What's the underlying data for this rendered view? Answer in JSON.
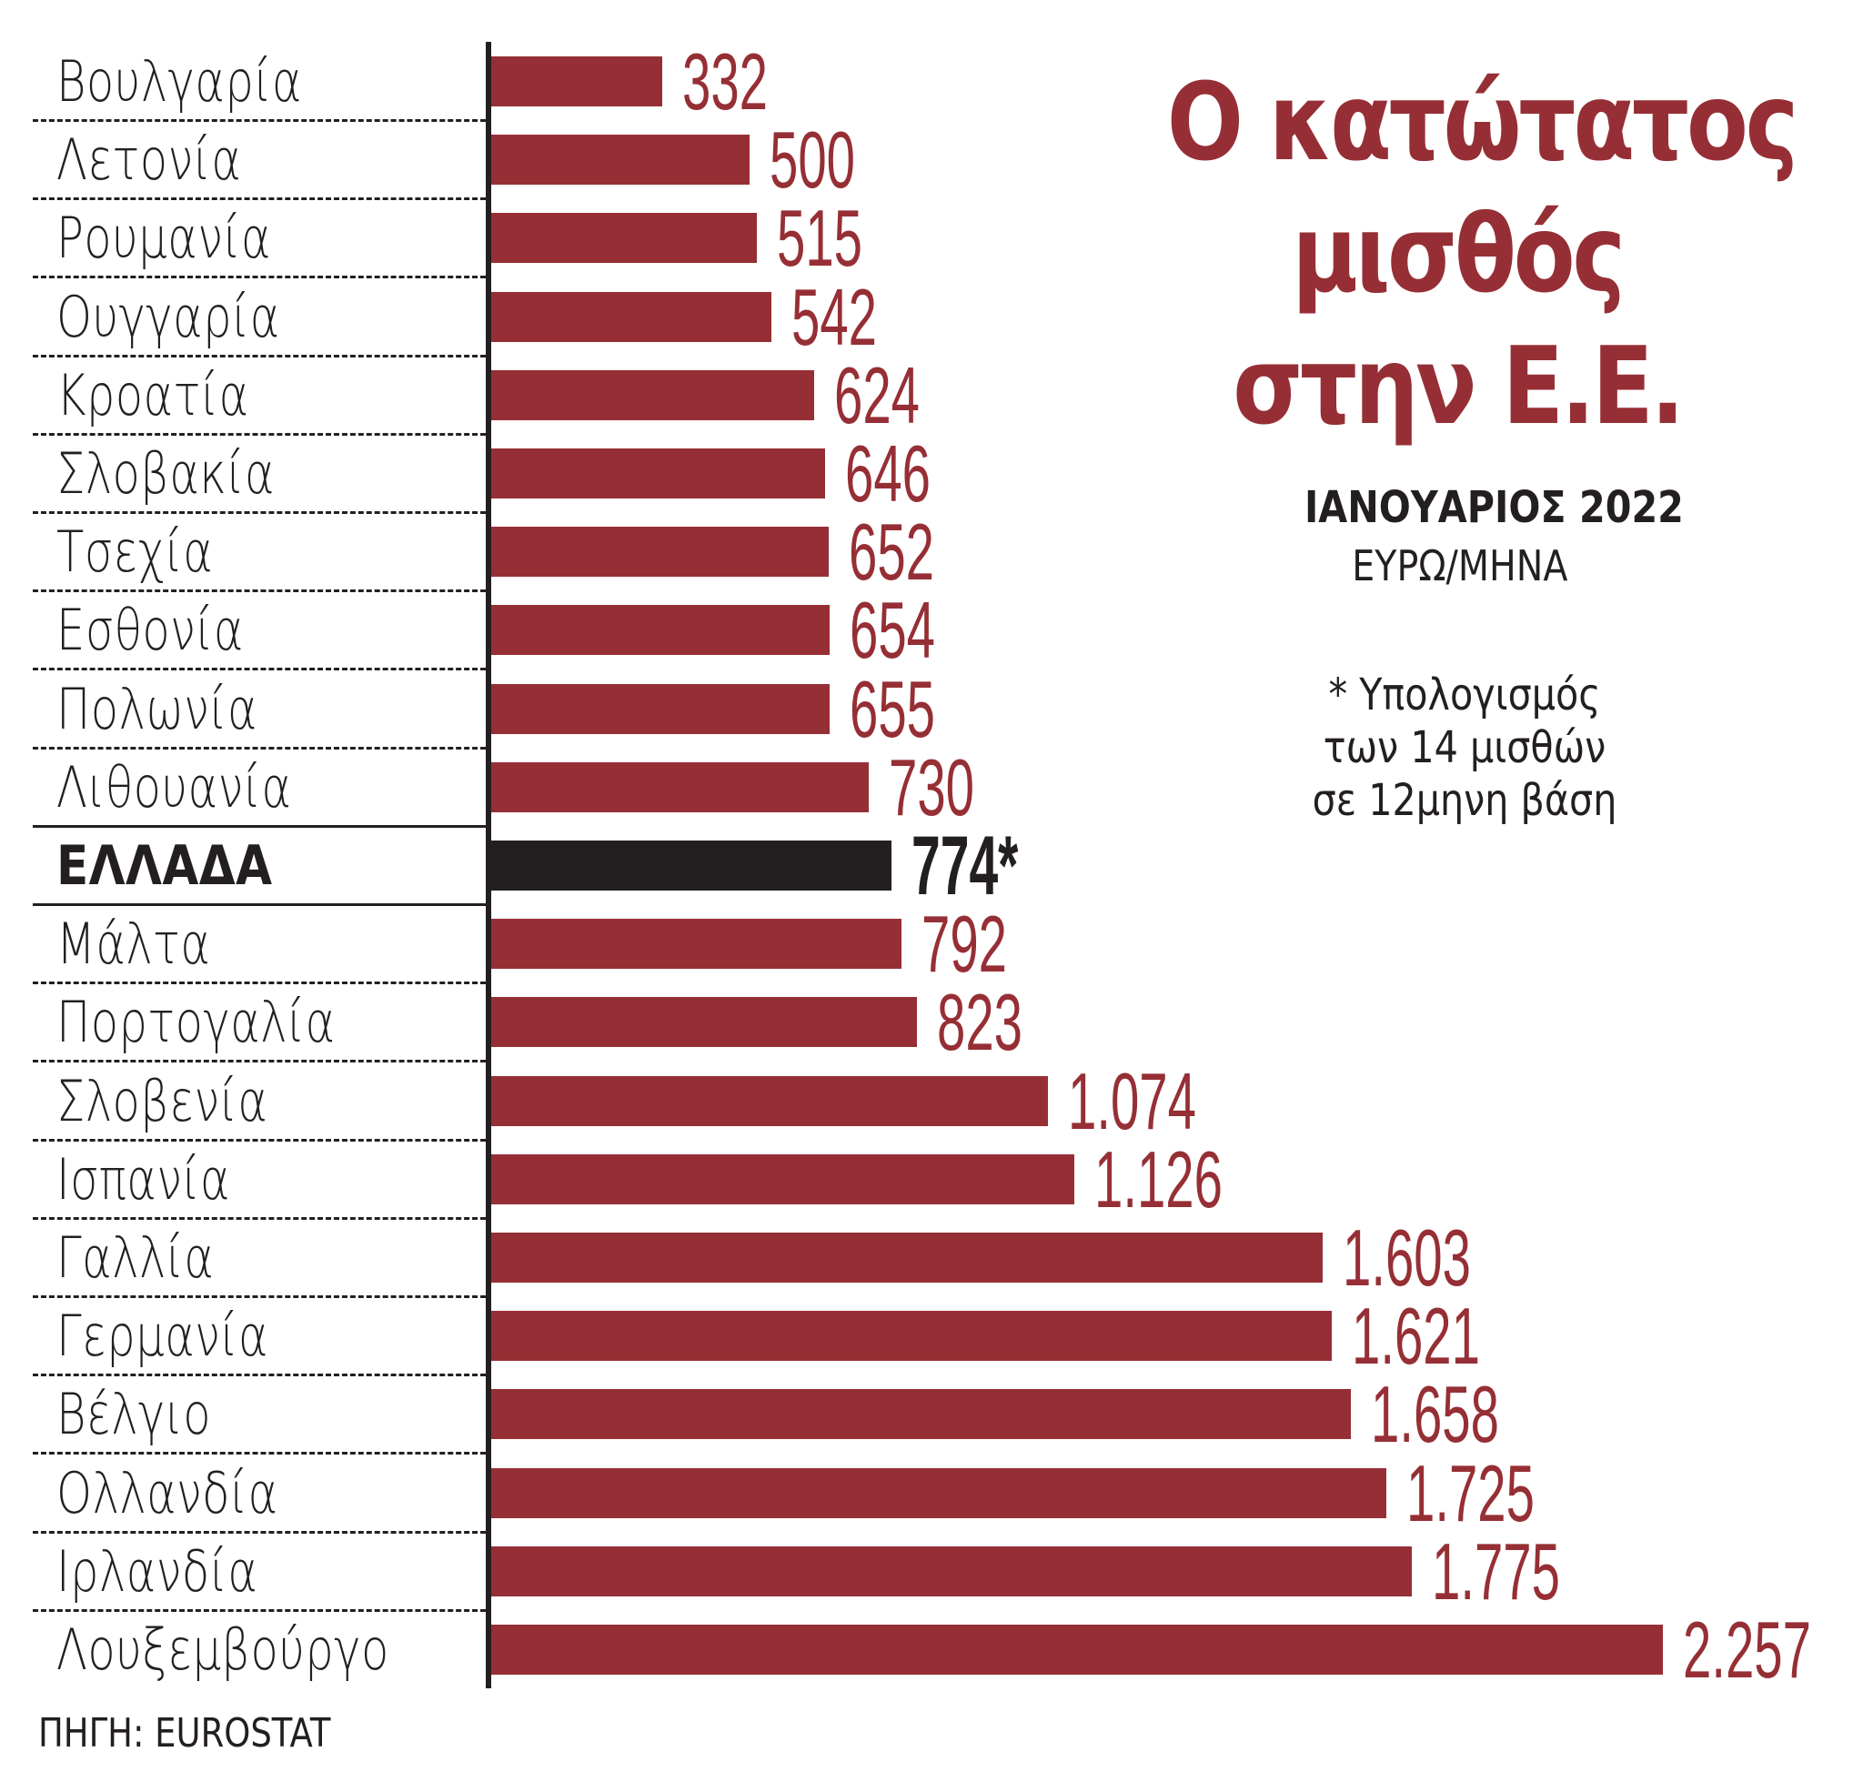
{
  "title": {
    "lines": [
      "Ο κατώτατος",
      "μισθός",
      "στην Ε.Ε."
    ]
  },
  "subtitle": "ΙΑΝΟΥΑΡΙΟΣ 2022",
  "unit": "ΕΥΡΩ/ΜΗΝΑ",
  "footnote": {
    "lines": [
      "* Υπολογισμός",
      "των 14 μισθών",
      "σε 12μηνη βάση"
    ]
  },
  "source": "ΠΗΓΗ: EUROSTAT",
  "colors": {
    "bar": "#962f35",
    "highlight_bar": "#231f20",
    "title": "#962f35",
    "text": "#231f20"
  },
  "rows": [
    {
      "country": "Βουλγαρία",
      "value": 332,
      "label": "332",
      "highlight": false
    },
    {
      "country": "Λετονία",
      "value": 500,
      "label": "500",
      "highlight": false
    },
    {
      "country": "Ρουμανία",
      "value": 515,
      "label": "515",
      "highlight": false
    },
    {
      "country": "Ουγγαρία",
      "value": 542,
      "label": "542",
      "highlight": false
    },
    {
      "country": "Κροατία",
      "value": 624,
      "label": "624",
      "highlight": false
    },
    {
      "country": "Σλοβακία",
      "value": 646,
      "label": "646",
      "highlight": false
    },
    {
      "country": "Τσεχία",
      "value": 652,
      "label": "652",
      "highlight": false
    },
    {
      "country": "Εσθονία",
      "value": 654,
      "label": "654",
      "highlight": false
    },
    {
      "country": "Πολωνία",
      "value": 655,
      "label": "655",
      "highlight": false
    },
    {
      "country": "Λιθουανία",
      "value": 730,
      "label": "730",
      "highlight": false
    },
    {
      "country": "ΕΛΛΑΔΑ",
      "value": 774,
      "label": "774*",
      "highlight": true
    },
    {
      "country": "Μάλτα",
      "value": 792,
      "label": "792",
      "highlight": false
    },
    {
      "country": "Πορτογαλία",
      "value": 823,
      "label": "823",
      "highlight": false
    },
    {
      "country": "Σλοβενία",
      "value": 1074,
      "label": "1.074",
      "highlight": false
    },
    {
      "country": "Ισπανία",
      "value": 1126,
      "label": "1.126",
      "highlight": false
    },
    {
      "country": "Γαλλία",
      "value": 1603,
      "label": "1.603",
      "highlight": false
    },
    {
      "country": "Γερμανία",
      "value": 1621,
      "label": "1.621",
      "highlight": false
    },
    {
      "country": "Βέλγιο",
      "value": 1658,
      "label": "1.658",
      "highlight": false
    },
    {
      "country": "Ολλανδία",
      "value": 1725,
      "label": "1.725",
      "highlight": false
    },
    {
      "country": "Ιρλανδία",
      "value": 1775,
      "label": "1.775",
      "highlight": false
    },
    {
      "country": "Λουξεμβούργο",
      "value": 2257,
      "label": "2.257",
      "highlight": false
    }
  ],
  "chart_data": {
    "type": "bar",
    "orientation": "horizontal",
    "title": "Ο κατώτατος μισθός στην Ε.Ε.",
    "subtitle": "ΙΑΝΟΥΑΡΙΟΣ 2022",
    "xlabel": "ΕΥΡΩ/ΜΗΝΑ",
    "ylabel": "",
    "categories": [
      "Βουλγαρία",
      "Λετονία",
      "Ρουμανία",
      "Ουγγαρία",
      "Κροατία",
      "Σλοβακία",
      "Τσεχία",
      "Εσθονία",
      "Πολωνία",
      "Λιθουανία",
      "ΕΛΛΑΔΑ",
      "Μάλτα",
      "Πορτογαλία",
      "Σλοβενία",
      "Ισπανία",
      "Γαλλία",
      "Γερμανία",
      "Βέλγιο",
      "Ολλανδία",
      "Ιρλανδία",
      "Λουξεμβούργο"
    ],
    "values": [
      332,
      500,
      515,
      542,
      624,
      646,
      652,
      654,
      655,
      730,
      774,
      792,
      823,
      1074,
      1126,
      1603,
      1621,
      1658,
      1725,
      1775,
      2257
    ],
    "data_labels": [
      "332",
      "500",
      "515",
      "542",
      "624",
      "646",
      "652",
      "654",
      "655",
      "730",
      "774*",
      "792",
      "823",
      "1.074",
      "1.126",
      "1.603",
      "1.621",
      "1.658",
      "1.725",
      "1.775",
      "2.257"
    ],
    "highlighted_category": "ΕΛΛΑΔΑ",
    "annotation": "* Υπολογισμός των 14 μισθών σε 12μηνη βάση",
    "source": "ΠΗΓΗ: EUROSTAT",
    "xlim": [
      0,
      2257
    ],
    "grid": false,
    "legend": "none",
    "value_axis_shown": false
  }
}
